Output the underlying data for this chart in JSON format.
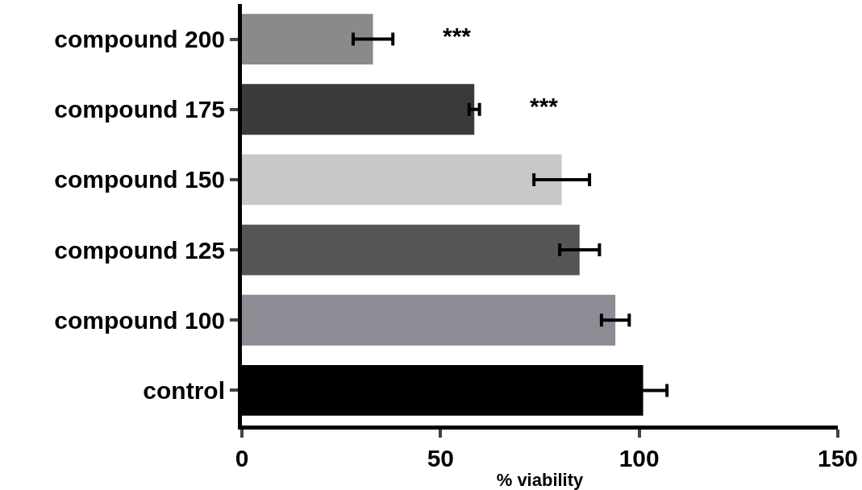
{
  "chart_data": {
    "type": "bar",
    "orientation": "horizontal",
    "xlabel": "% viability",
    "categories": [
      "compound 200",
      "compound 175",
      "compound 150",
      "compound 125",
      "compound 100",
      "control"
    ],
    "values": [
      33,
      58.5,
      80.5,
      85,
      94,
      101
    ],
    "errors": [
      5,
      1.3,
      7,
      5,
      3.5,
      6
    ],
    "colors": [
      "#8a8a8a",
      "#3a3a3a",
      "#c8c8c8",
      "#555555",
      "#8c8c94",
      "#000000"
    ],
    "xlim": [
      0,
      150
    ],
    "xticks": [
      0,
      50,
      100,
      150
    ],
    "grid": false,
    "annotations": [
      "***",
      "***"
    ]
  }
}
